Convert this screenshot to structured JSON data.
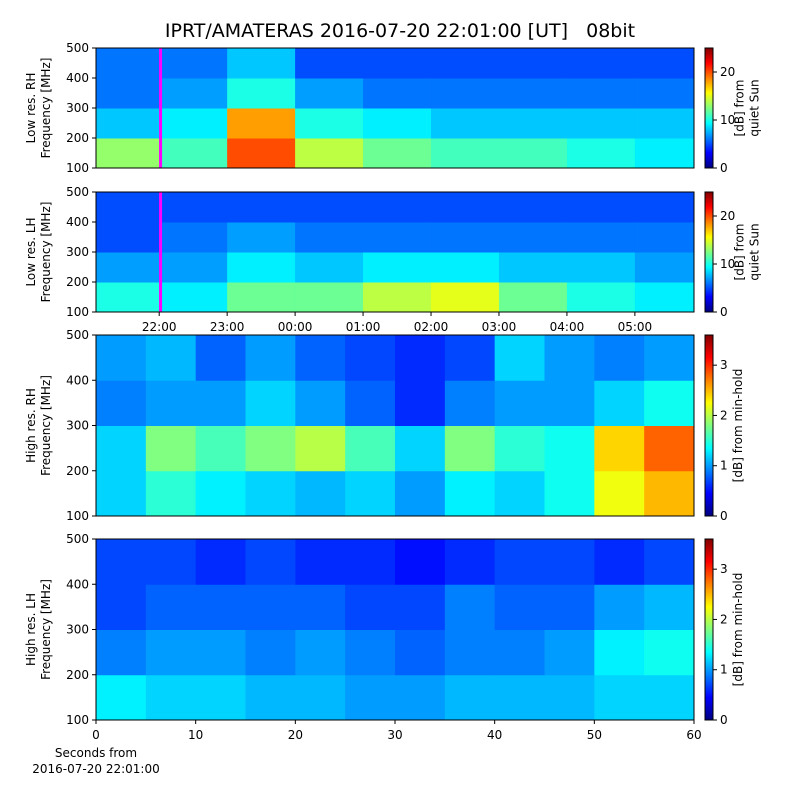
{
  "chart_data": [
    {
      "type": "heatmap",
      "title": "IPRT/AMATERAS 2016-07-20 22:01:00 [UT]   08bit",
      "ylabel": [
        "Low res. RH",
        "Frequency [MHz]"
      ],
      "xlim": [
        21.07,
        29.87
      ],
      "ylim": [
        100,
        500
      ],
      "yticks": [
        100,
        200,
        300,
        400,
        500
      ],
      "xbins": [
        21.07,
        22,
        23,
        24,
        25,
        26,
        27,
        28,
        29,
        29.87
      ],
      "ybins": [
        100,
        200,
        300,
        400,
        500
      ],
      "z": [
        [
          13,
          11,
          20,
          14,
          12,
          11,
          11,
          10,
          9
        ],
        [
          8,
          9,
          18,
          10,
          9,
          8,
          8,
          8,
          8
        ],
        [
          6,
          7,
          10,
          7,
          6,
          6,
          6,
          6,
          6
        ],
        [
          6,
          6,
          8,
          5,
          5,
          5,
          5,
          5,
          5
        ]
      ],
      "marker_x": 22.02,
      "marker_color": "#ff00ff",
      "clim": [
        0,
        25
      ],
      "cticks": [
        0,
        10,
        20
      ],
      "clabel": [
        "[dB] from",
        "quiet Sun"
      ]
    },
    {
      "type": "heatmap",
      "ylabel": [
        "Low res. LH",
        "Frequency [MHz]"
      ],
      "xlim": [
        21.07,
        29.87
      ],
      "ylim": [
        100,
        500
      ],
      "yticks": [
        100,
        200,
        300,
        400,
        500
      ],
      "xticks": [
        {
          "value": 22,
          "label": "22:00"
        },
        {
          "value": 23,
          "label": "23:00"
        },
        {
          "value": 24,
          "label": "00:00"
        },
        {
          "value": 25,
          "label": "01:00"
        },
        {
          "value": 26,
          "label": "02:00"
        },
        {
          "value": 27,
          "label": "03:00"
        },
        {
          "value": 28,
          "label": "04:00"
        },
        {
          "value": 29,
          "label": "05:00"
        }
      ],
      "xbins": [
        21.07,
        22,
        23,
        24,
        25,
        26,
        27,
        28,
        29,
        29.87
      ],
      "ybins": [
        100,
        200,
        300,
        400,
        500
      ],
      "z": [
        [
          10,
          9,
          12,
          12,
          14,
          15,
          12,
          10,
          9
        ],
        [
          7,
          7,
          9,
          8,
          9,
          9,
          8,
          8,
          7
        ],
        [
          5,
          6,
          7,
          6,
          6,
          6,
          6,
          6,
          6
        ],
        [
          5,
          5,
          5,
          5,
          5,
          5,
          5,
          5,
          5
        ]
      ],
      "marker_x": 22.02,
      "marker_color": "#ff00ff",
      "clim": [
        0,
        25
      ],
      "cticks": [
        0,
        10,
        20
      ],
      "clabel": [
        "[dB] from",
        "quiet Sun"
      ]
    },
    {
      "type": "heatmap",
      "ylabel": [
        "High res. RH",
        "Frequency [MHz]"
      ],
      "xlim": [
        0,
        60
      ],
      "ylim": [
        100,
        500
      ],
      "yticks": [
        100,
        200,
        300,
        400,
        500
      ],
      "xbins": [
        0,
        5,
        10,
        15,
        20,
        25,
        30,
        35,
        40,
        45,
        50,
        55,
        60
      ],
      "ybins": [
        100,
        200,
        300,
        400,
        500
      ],
      "z": [
        [
          1.2,
          1.5,
          1.3,
          1.2,
          1.1,
          1.2,
          1.0,
          1.3,
          1.2,
          1.4,
          2.2,
          2.5
        ],
        [
          1.2,
          1.8,
          1.6,
          1.8,
          2.0,
          1.6,
          1.2,
          1.8,
          1.5,
          1.4,
          2.4,
          2.8
        ],
        [
          0.9,
          1.0,
          1.0,
          1.2,
          1.0,
          0.8,
          0.6,
          0.9,
          1.0,
          1.0,
          1.2,
          1.4
        ],
        [
          1.0,
          1.1,
          0.8,
          1.0,
          0.8,
          0.7,
          0.6,
          0.7,
          1.2,
          1.0,
          0.9,
          1.0
        ]
      ],
      "clim": [
        0,
        3.6
      ],
      "cticks": [
        0,
        1,
        2,
        3
      ],
      "clabel": [
        "[dB] from min-hold"
      ]
    },
    {
      "type": "heatmap",
      "ylabel": [
        "High res. LH",
        "Frequency [MHz]"
      ],
      "xlabel": [
        "Seconds from",
        "2016-07-20 22:01:00"
      ],
      "xlim": [
        0,
        60
      ],
      "ylim": [
        100,
        500
      ],
      "yticks": [
        100,
        200,
        300,
        400,
        500
      ],
      "xticks": [
        0,
        10,
        20,
        30,
        40,
        50,
        60
      ],
      "xbins": [
        0,
        5,
        10,
        15,
        20,
        25,
        30,
        35,
        40,
        45,
        50,
        55,
        60
      ],
      "ybins": [
        100,
        200,
        300,
        400,
        500
      ],
      "z": [
        [
          1.3,
          1.2,
          1.2,
          1.1,
          1.1,
          1.0,
          1.0,
          1.1,
          1.1,
          1.1,
          1.2,
          1.2
        ],
        [
          0.9,
          1.0,
          1.0,
          0.9,
          1.0,
          0.9,
          0.8,
          0.9,
          0.9,
          1.0,
          1.3,
          1.4
        ],
        [
          0.7,
          0.8,
          0.8,
          0.8,
          0.8,
          0.7,
          0.7,
          0.9,
          0.8,
          0.8,
          1.0,
          1.1
        ],
        [
          0.7,
          0.7,
          0.6,
          0.7,
          0.6,
          0.6,
          0.5,
          0.6,
          0.7,
          0.7,
          0.6,
          0.7
        ]
      ],
      "clim": [
        0,
        3.6
      ],
      "cticks": [
        0,
        1,
        2,
        3
      ],
      "clabel": [
        "[dB] from min-hold"
      ]
    }
  ]
}
